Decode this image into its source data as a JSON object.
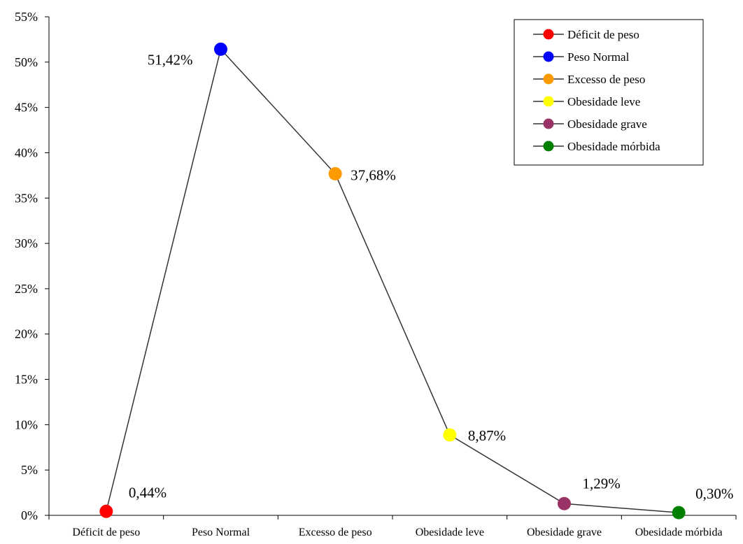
{
  "chart_data": {
    "type": "line",
    "categories": [
      "Déficit de peso",
      "Peso Normal",
      "Excesso de peso",
      "Obesidade leve",
      "Obesidade grave",
      "Obesidade mórbida"
    ],
    "values": [
      0.44,
      51.42,
      37.68,
      8.87,
      1.29,
      0.3
    ],
    "data_labels": [
      "0,44%",
      "51,42%",
      "37,68%",
      "8,87%",
      "1,29%",
      "0,30%"
    ],
    "point_colors": [
      "#ff0000",
      "#0000ff",
      "#ff9900",
      "#ffff00",
      "#993366",
      "#008000"
    ],
    "line_color": "#333333",
    "y_ticks": [
      0,
      5,
      10,
      15,
      20,
      25,
      30,
      35,
      40,
      45,
      50,
      55
    ],
    "y_tick_labels": [
      "0%",
      "5%",
      "10%",
      "15%",
      "20%",
      "25%",
      "30%",
      "35%",
      "40%",
      "45%",
      "50%",
      "55%"
    ],
    "ylim": [
      0,
      55
    ],
    "grid": false,
    "legend_position": "top-right",
    "legend": [
      "Déficit de peso",
      "Peso Normal",
      "Excesso de peso",
      "Obesidade leve",
      "Obesidade grave",
      "Obesidade mórbida"
    ]
  }
}
